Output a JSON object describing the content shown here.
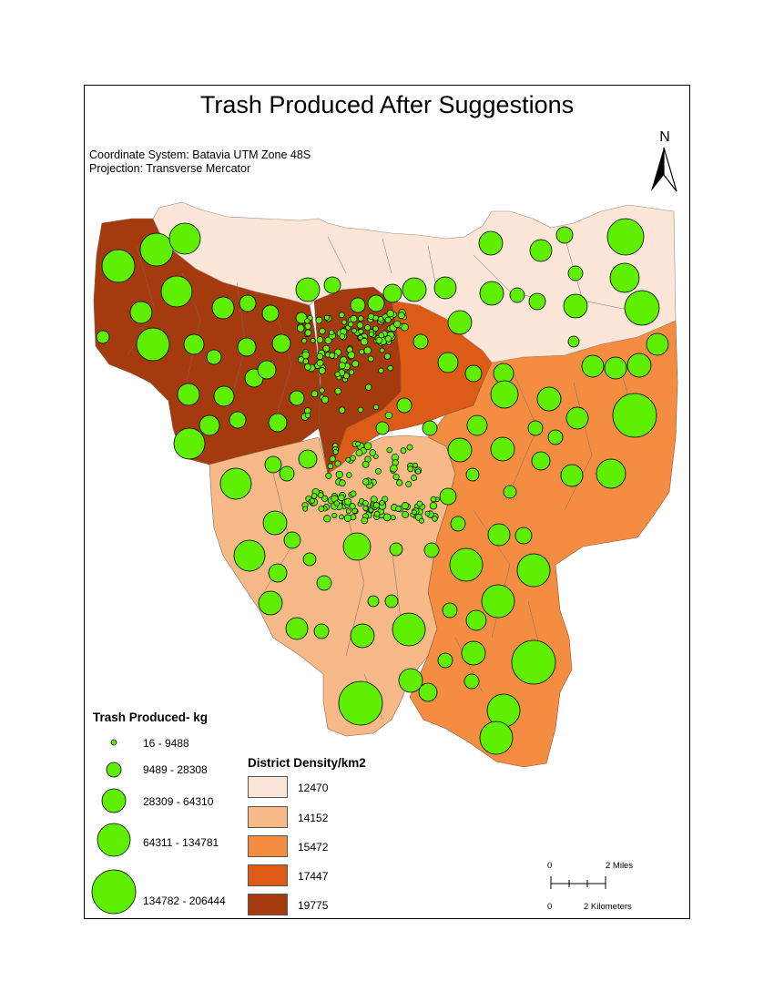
{
  "map": {
    "title": "Trash Produced After Suggestions",
    "coordinate_system": "Coordinate System: Batavia UTM Zone 48S",
    "projection": "Projection: Transverse Mercator",
    "north_label": "N"
  },
  "trash_legend": {
    "title": "Trash Produced- kg",
    "classes": [
      {
        "label": "16 - 9488"
      },
      {
        "label": "9489 - 28308"
      },
      {
        "label": "28309 - 64310"
      },
      {
        "label": "64311 - 134781"
      },
      {
        "label": "134782 - 206444"
      }
    ],
    "symbol_color": "#5ef000"
  },
  "density_legend": {
    "title": "District Density/km2",
    "classes": [
      {
        "label": "12470",
        "color": "#fce6d8"
      },
      {
        "label": "14152",
        "color": "#f7b988"
      },
      {
        "label": "15472",
        "color": "#f48c42"
      },
      {
        "label": "17447",
        "color": "#dc5b16"
      },
      {
        "label": "19775",
        "color": "#a63a0f"
      }
    ]
  },
  "scale_bar": {
    "top_zero": "0",
    "top_label": "2 Miles",
    "bottom_zero": "0",
    "bottom_label": "2 Kilometers"
  }
}
